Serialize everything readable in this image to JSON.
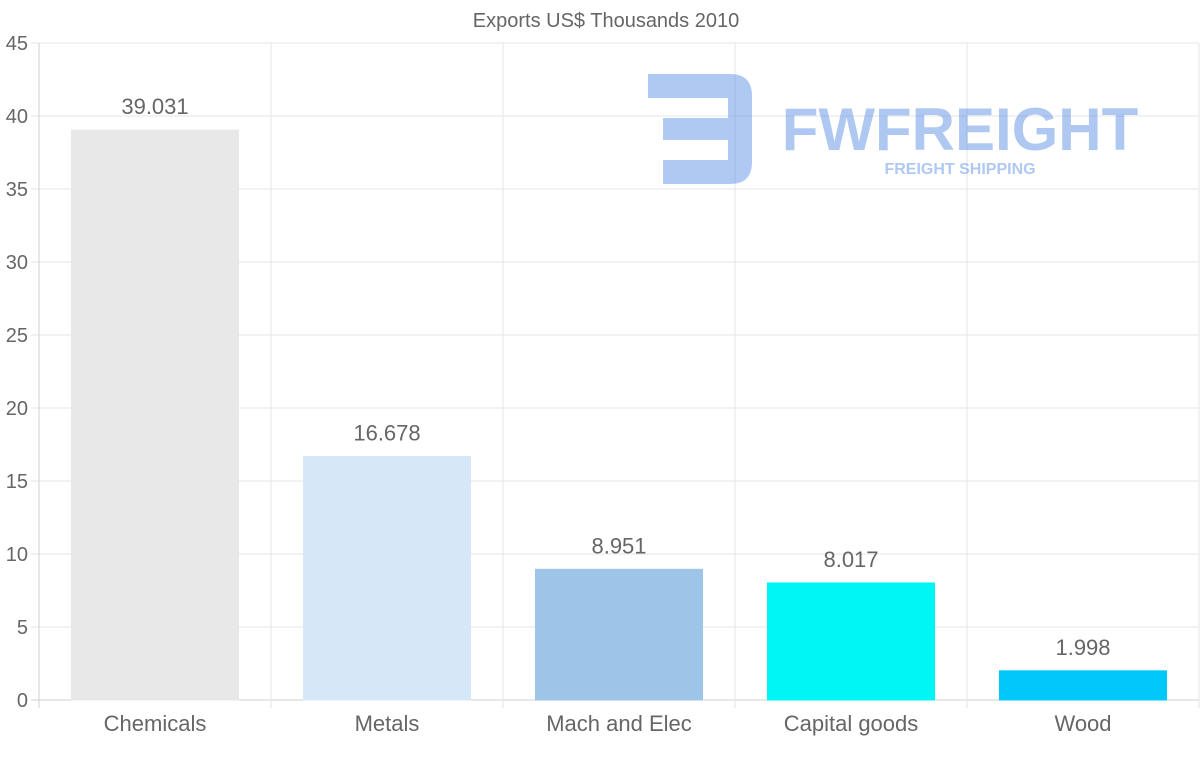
{
  "chart_data": {
    "type": "bar",
    "title": "Exports US$ Thousands 2010",
    "xlabel": "",
    "ylabel": "",
    "categories": [
      "Chemicals",
      "Metals",
      "Mach and Elec",
      "Capital goods",
      "Wood"
    ],
    "values": [
      39.031,
      16.678,
      8.951,
      8.017,
      1.998
    ],
    "value_labels": [
      "39.031",
      "16.678",
      "8.951",
      "8.017",
      "1.998"
    ],
    "colors": [
      "#e8e8e8",
      "#d6e8f8",
      "#9dc5e8",
      "#00f5f5",
      "#00c8f8"
    ],
    "ylim": [
      0,
      45
    ],
    "yticks": [
      0,
      5,
      10,
      15,
      20,
      25,
      30,
      35,
      40,
      45
    ],
    "grid": true
  },
  "watermark": {
    "brand": "FWFREIGHT",
    "tagline": "FREIGHT SHIPPING",
    "color": "#3a78e0"
  }
}
